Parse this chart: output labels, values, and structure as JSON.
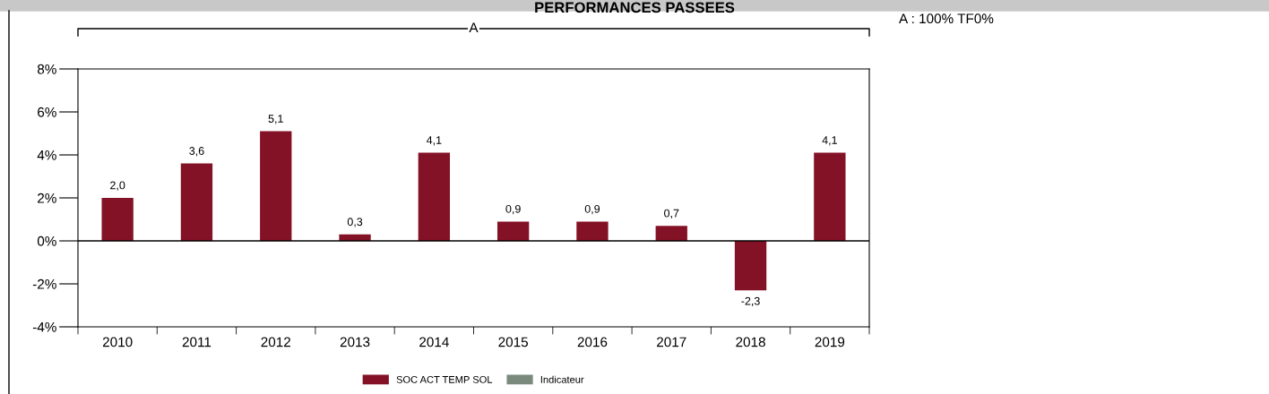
{
  "chart_data": {
    "type": "bar",
    "title": "PERFORMANCES PASSEES",
    "categories": [
      "2010",
      "2011",
      "2012",
      "2013",
      "2014",
      "2015",
      "2016",
      "2017",
      "2018",
      "2019"
    ],
    "series": [
      {
        "name": "SOC ACT TEMP SOL",
        "color": "#841226",
        "values": [
          2.0,
          3.6,
          5.1,
          0.3,
          4.1,
          0.9,
          0.9,
          0.7,
          -2.3,
          4.1
        ],
        "value_labels": [
          "2,0",
          "3,6",
          "5,1",
          "0,3",
          "4,1",
          "0,9",
          "0,9",
          "0,7",
          "-2,3",
          "4,1"
        ]
      },
      {
        "name": "Indicateur",
        "color": "#7a8a7c",
        "values": [
          null,
          null,
          null,
          null,
          null,
          null,
          null,
          null,
          null,
          null
        ]
      }
    ],
    "ylim": [
      -4,
      8
    ],
    "yticks": [
      {
        "value": -4,
        "label": "-4%"
      },
      {
        "value": -2,
        "label": "-2%"
      },
      {
        "value": 0,
        "label": "0%"
      },
      {
        "value": 2,
        "label": "2%"
      },
      {
        "value": 4,
        "label": "4%"
      },
      {
        "value": 6,
        "label": "6%"
      },
      {
        "value": 8,
        "label": "8%"
      }
    ],
    "ref_lines": [
      {
        "axis": "y",
        "value": 0,
        "color": "#000000"
      }
    ],
    "annotations": [
      "A",
      "A : 100% TF0%"
    ],
    "legend": "bottom",
    "grid": false
  }
}
